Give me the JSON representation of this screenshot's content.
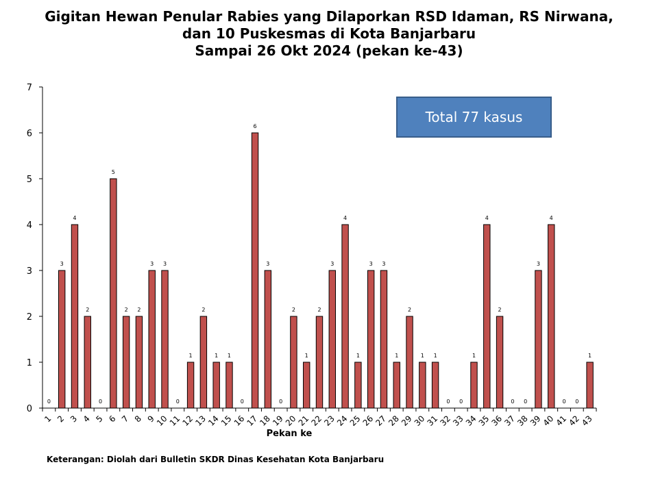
{
  "header": {
    "title_lines": [
      "Gigitan Hewan Penular Rabies yang Dilaporkan RSD Idaman, RS Nirwana,",
      "dan 10 Puskesmas di Kota Banjarbaru",
      "Sampai 26 Okt 2024 (pekan ke-43)"
    ]
  },
  "annotation": {
    "total_label": "Total 77 kasus"
  },
  "footnote": {
    "text": "Keterangan: Diolah dari Bulletin SKDR Dinas Kesehatan Kota Banjarbaru"
  },
  "colors": {
    "bar_fill": "#c0504d",
    "bar_stroke": "#000000",
    "box_fill": "#4f81bd",
    "box_border": "#385d8a"
  },
  "chart_data": {
    "type": "bar",
    "title": "Gigitan Hewan Penular Rabies yang Dilaporkan RSD Idaman, RS Nirwana, dan 10 Puskesmas di Kota Banjarbaru Sampai 26 Okt 2024 (pekan ke-43)",
    "xlabel": "Pekan ke",
    "ylabel": "",
    "ylim": [
      0,
      7
    ],
    "yticks": [
      0,
      1,
      2,
      3,
      4,
      5,
      6,
      7
    ],
    "grid": false,
    "legend": "none",
    "categories": [
      "1",
      "2",
      "3",
      "4",
      "5",
      "6",
      "7",
      "8",
      "9",
      "10",
      "11",
      "12",
      "13",
      "14",
      "15",
      "16",
      "17",
      "18",
      "19",
      "20",
      "21",
      "22",
      "23",
      "24",
      "25",
      "26",
      "27",
      "28",
      "29",
      "30",
      "31",
      "32",
      "33",
      "34",
      "35",
      "36",
      "37",
      "38",
      "39",
      "40",
      "41",
      "42",
      "43"
    ],
    "values": [
      0,
      3,
      4,
      2,
      0,
      5,
      2,
      2,
      3,
      3,
      0,
      1,
      2,
      1,
      1,
      0,
      6,
      3,
      0,
      2,
      1,
      2,
      3,
      4,
      1,
      3,
      3,
      1,
      2,
      1,
      1,
      0,
      0,
      1,
      4,
      2,
      0,
      0,
      3,
      4,
      0,
      0,
      1
    ]
  }
}
